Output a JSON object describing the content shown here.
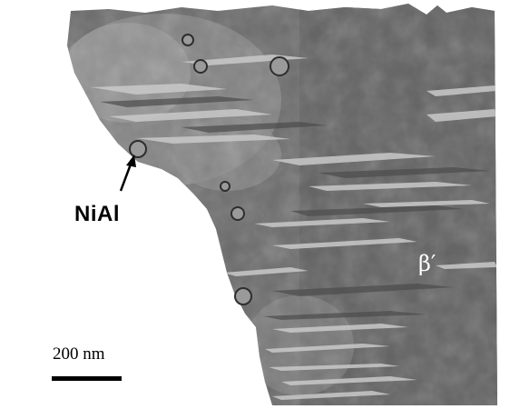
{
  "image": {
    "kind": "TEM micrograph",
    "background_color": "#ffffff",
    "specimen_color": "#6b6b6b"
  },
  "labels": {
    "precipitate": "NiAl",
    "phase": "β′"
  },
  "scale_bar": {
    "label": "200 nm",
    "color": "#000000"
  }
}
